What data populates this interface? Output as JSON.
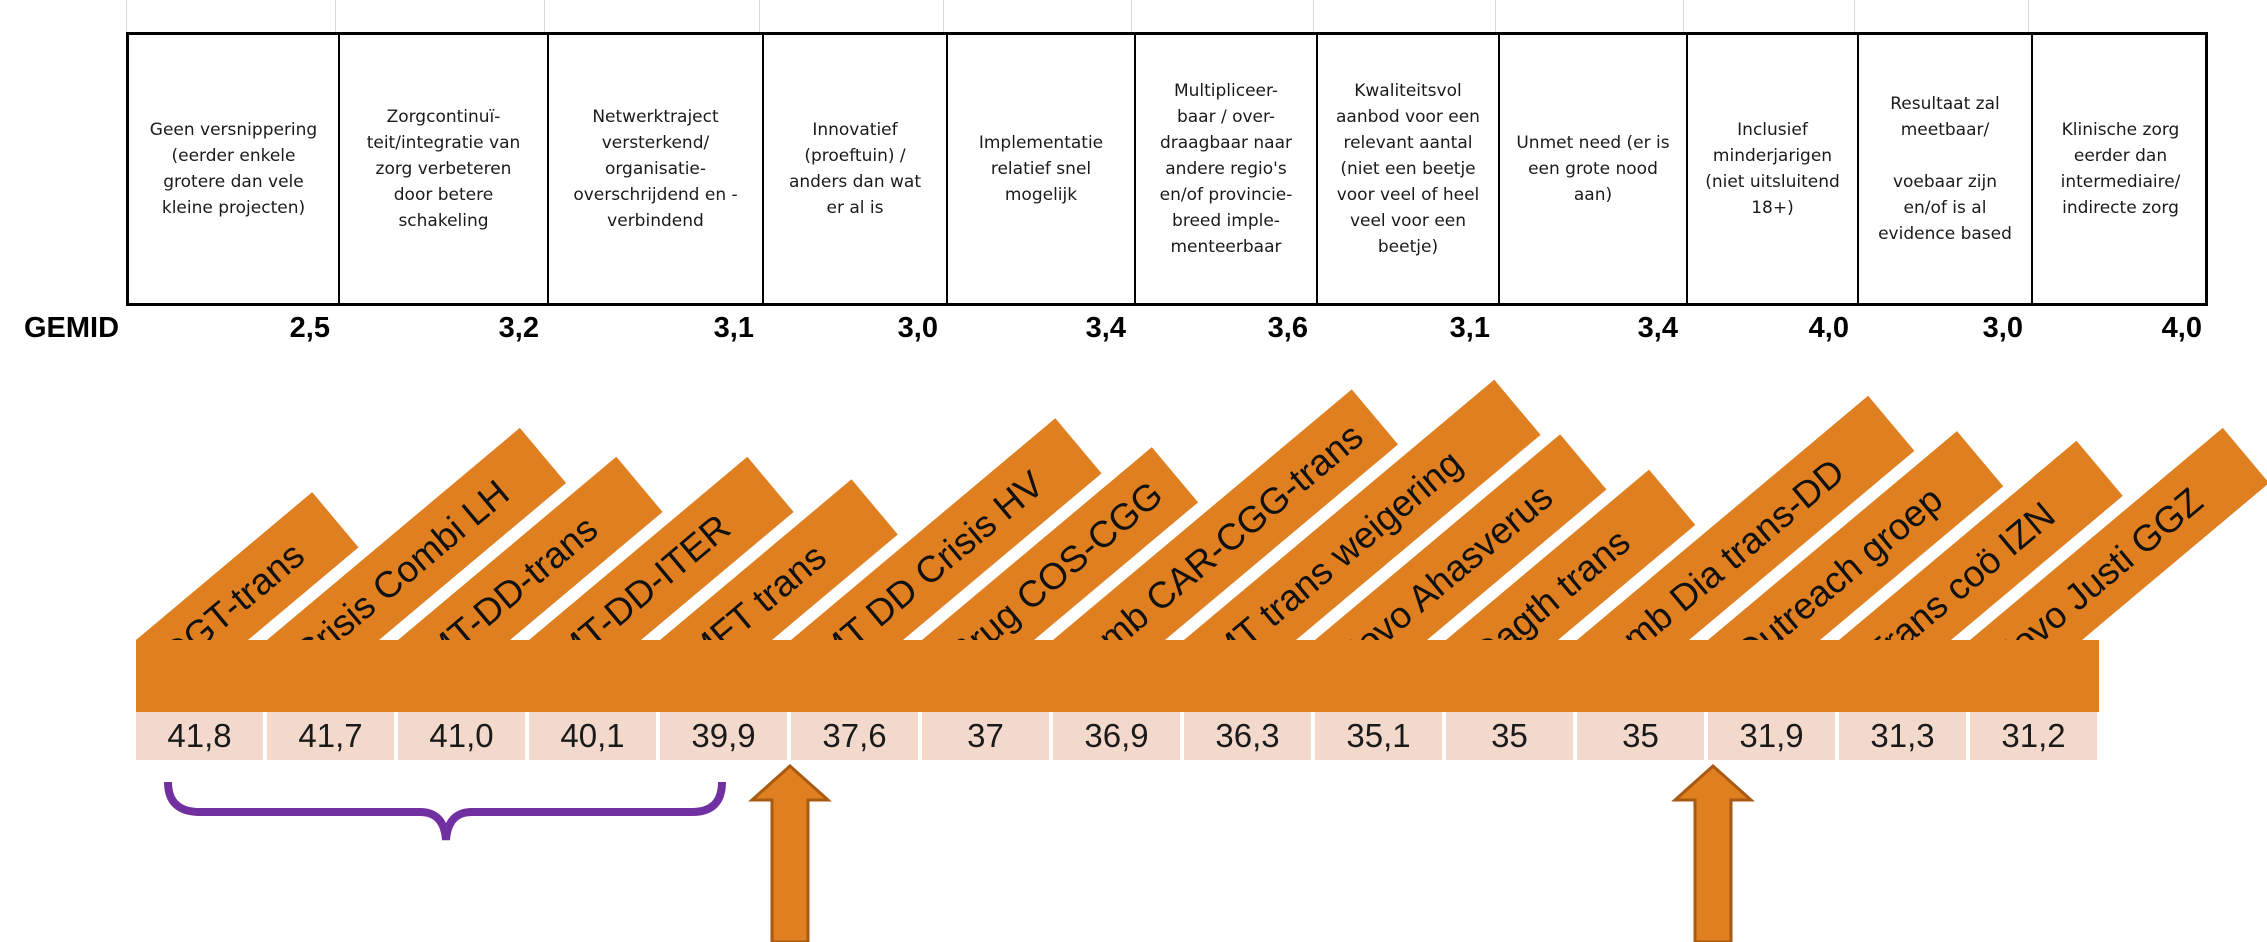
{
  "criteria_table": {
    "columns": [
      {
        "text": "Geen versnippering\n(eerder enkele\ngrotere dan vele\nkleine projecten)",
        "avg": "2,5"
      },
      {
        "text": "Zorgcontinuï-\nteit/integratie van\nzorg verbeteren\ndoor betere\nschakeling",
        "avg": "3,2"
      },
      {
        "text": "Netwerktraject\nversterkend/\norganisatie-\noverschrijdend en -\nverbindend",
        "avg": "3,1"
      },
      {
        "text": "Innovatief\n(proeftuin) /\nanders dan wat\ner al is",
        "avg": "3,0"
      },
      {
        "text": "Implementatie\nrelatief snel\nmogelijk",
        "avg": "3,4"
      },
      {
        "text": "Multipliceer-\nbaar / over-\ndraagbaar naar\nandere regio's\nen/of provincie-\nbreed imple-\nmenteerbaar",
        "avg": "3,6"
      },
      {
        "text": "Kwaliteitsvol\naanbod voor een\nrelevant aantal\n(niet een beetje\nvoor veel of heel\nveel voor een\nbeetje)",
        "avg": "3,1"
      },
      {
        "text": "Unmet need (er is\neen grote nood\naan)",
        "avg": "3,4"
      },
      {
        "text": "Inclusief\nminderjarigen\n(niet uitsluitend\n18+)",
        "avg": "4,0"
      },
      {
        "text": "Resultaat zal\nmeetbaar/\n\nvoebaar zijn\nen/of is al\nevidence based",
        "avg": "3,0"
      },
      {
        "text": "Klinische zorg\neerder dan\nintermediaire/\nindirecte zorg",
        "avg": "4,0"
      }
    ],
    "avg_label": "GEMID"
  },
  "projects": [
    {
      "name": "DGT-trans",
      "score": "41,8"
    },
    {
      "name": "Crisis Combi LH",
      "score": "41,7"
    },
    {
      "name": "MT-DD-trans",
      "score": "41,0"
    },
    {
      "name": "MT-DD-ITER",
      "score": "40,1"
    },
    {
      "name": "MFT trans",
      "score": "39,9"
    },
    {
      "name": "MT DD Crisis HV",
      "score": "37,6"
    },
    {
      "name": "Brug COS-CGG",
      "score": "37"
    },
    {
      "name": "Amb CAR-CGG-trans",
      "score": "36,9"
    },
    {
      "name": "MT trans weigering",
      "score": "36,3"
    },
    {
      "name": "Jovo Ahasverus",
      "score": "35,1"
    },
    {
      "name": "Dagth trans",
      "score": "35"
    },
    {
      "name": "Amb Dia trans-DD",
      "score": "35"
    },
    {
      "name": "Outreach groep",
      "score": "31,9"
    },
    {
      "name": "Trans coö IZN",
      "score": "31,3"
    },
    {
      "name": "Jovo Justi GGZ",
      "score": "31,2"
    }
  ],
  "colors": {
    "tag": "#e07f1f",
    "score_bg": "#f3d9cc",
    "brace": "#7030a0",
    "arrow": "#e07f1f"
  },
  "annotations": [
    "brace-icon",
    "up-arrow-icon",
    "up-arrow-icon"
  ]
}
